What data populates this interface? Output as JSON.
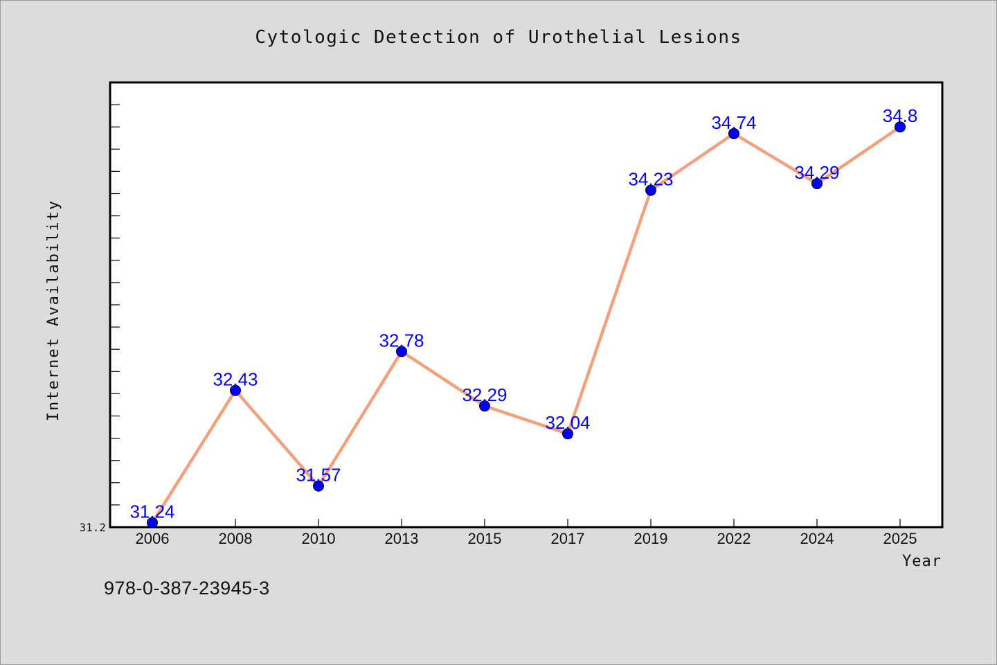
{
  "colors": {
    "background": "#dcdcdc",
    "plot_background": "#ffffff",
    "line": "#f4a07c",
    "marker": "#0000ff",
    "data_label": "#0000ff",
    "text": "#111111"
  },
  "footer_text": "978-0-387-23945-3",
  "chart_data": {
    "type": "line",
    "title": "Cytologic Detection of Urothelial Lesions",
    "xlabel": "Year",
    "ylabel": "Internet Availability",
    "categories": [
      "2006",
      "2008",
      "2010",
      "2013",
      "2015",
      "2017",
      "2019",
      "2022",
      "2024",
      "2025"
    ],
    "series": [
      {
        "values": [
          31.24,
          32.43,
          31.57,
          32.78,
          32.29,
          32.04,
          34.23,
          34.74,
          34.29,
          34.8
        ],
        "labels": [
          "31.24",
          "32.43",
          "31.57",
          "32.78",
          "32.29",
          "32.04",
          "34.23",
          "34.74",
          "34.29",
          "34.8"
        ],
        "marker": "circle"
      }
    ],
    "ylim": [
      31.2,
      35.2
    ],
    "yticklabels": [
      "31.2"
    ],
    "grid": false,
    "legend": "none"
  }
}
